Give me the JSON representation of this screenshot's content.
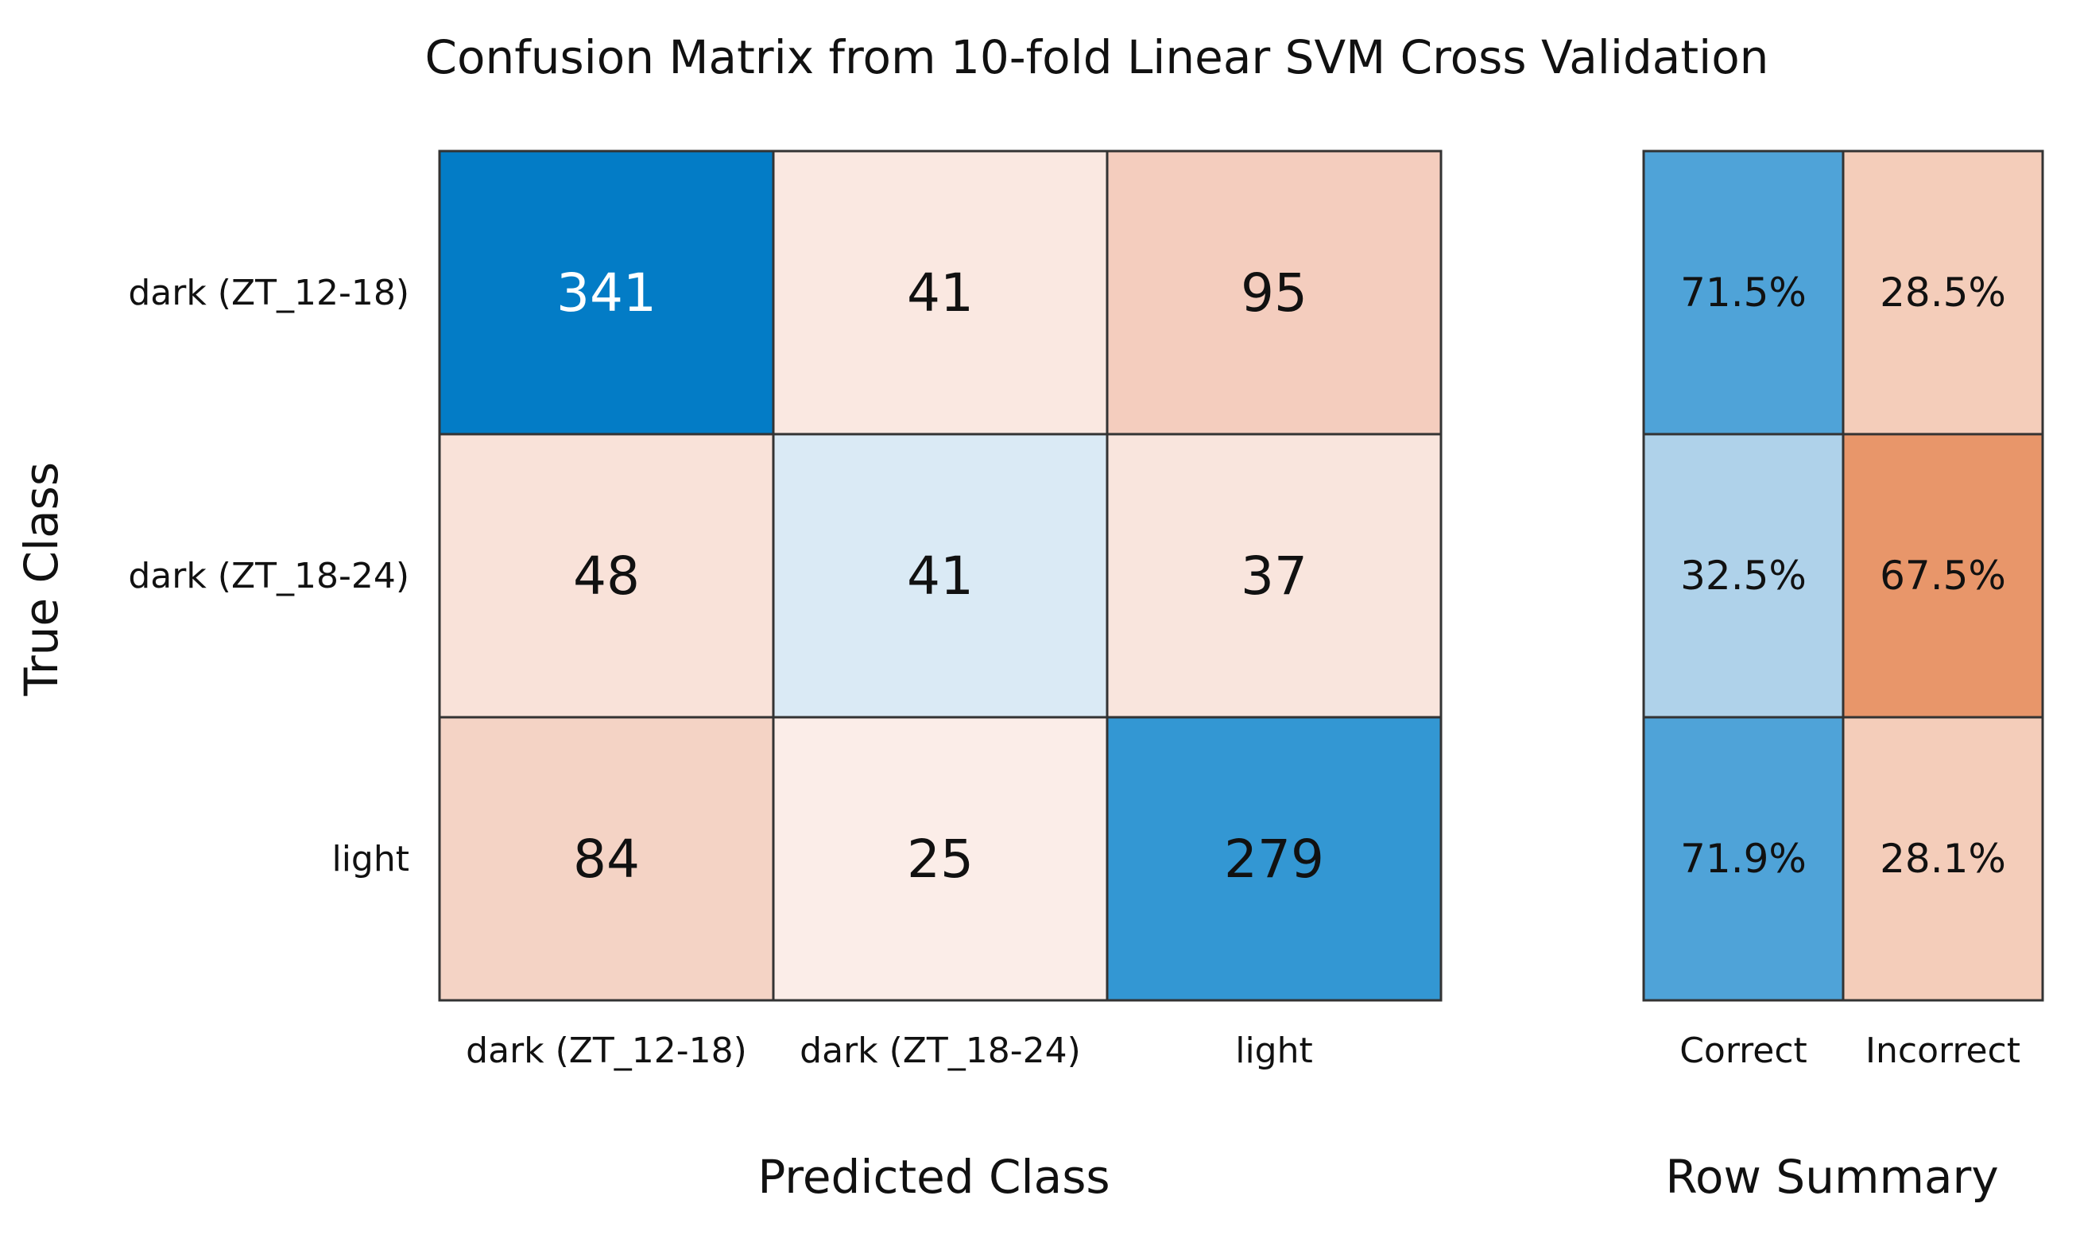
{
  "chart_data": {
    "type": "heatmap",
    "title": "Confusion Matrix from 10-fold Linear SVM Cross Validation",
    "xlabel": "Predicted Class",
    "ylabel": "True Class",
    "classes": [
      "dark (ZT_12-18)",
      "dark (ZT_18-24)",
      "light"
    ],
    "matrix": [
      [
        341,
        41,
        95
      ],
      [
        48,
        41,
        37
      ],
      [
        84,
        25,
        279
      ]
    ],
    "cell_colors": [
      [
        "#037CC6",
        "#FAE8E1",
        "#F4CDBE"
      ],
      [
        "#F9E2D9",
        "#DAEAF5",
        "#F9E5DD"
      ],
      [
        "#F4D3C5",
        "#FBEDE8",
        "#3397D3"
      ]
    ],
    "cell_text_colors": [
      [
        "#ffffff",
        "#111111",
        "#111111"
      ],
      [
        "#111111",
        "#111111",
        "#111111"
      ],
      [
        "#111111",
        "#111111",
        "#111111"
      ]
    ],
    "row_summary": {
      "label": "Row Summary",
      "columns": [
        "Correct",
        "Incorrect"
      ],
      "values": [
        [
          "71.5%",
          "28.5%"
        ],
        [
          "32.5%",
          "67.5%"
        ],
        [
          "71.9%",
          "28.1%"
        ]
      ],
      "colors": [
        [
          "#4FA3D8",
          "#F4CDBA"
        ],
        [
          "#AFD2EA",
          "#E8966A"
        ],
        [
          "#4FA3D8",
          "#F4CDBA"
        ]
      ]
    },
    "grid_color": "#333333"
  }
}
